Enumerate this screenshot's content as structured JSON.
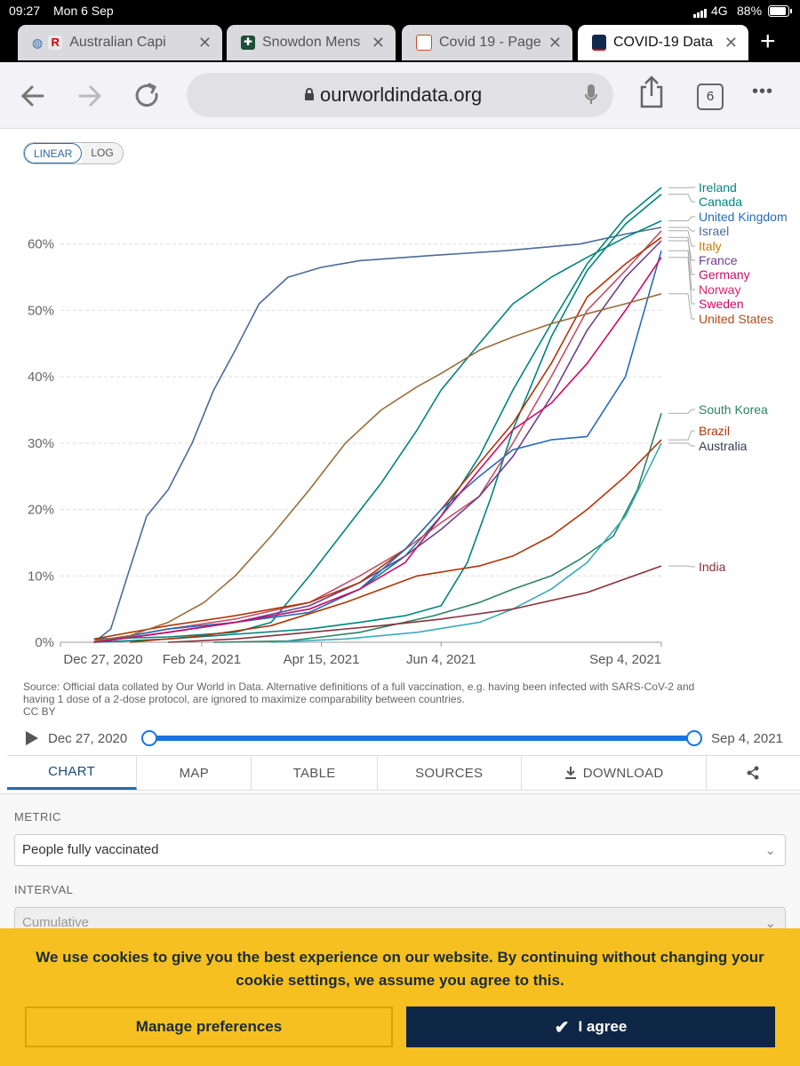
{
  "status": {
    "time": "09:27",
    "date": "Mon 6 Sep",
    "network": "4G",
    "battery": "88%"
  },
  "tabs": [
    {
      "label": "Australian Capi",
      "close": "✕",
      "color": "#3a6fb0"
    },
    {
      "label": "Snowdon Mens",
      "close": "✕",
      "color": "#1e4d3a"
    },
    {
      "label": "Covid 19 - Page",
      "close": "✕",
      "color": "#cc4b2a"
    },
    {
      "label": "COVID-19 Data",
      "close": "✕",
      "color": "#13294b"
    }
  ],
  "new_tab": "+",
  "toolbar": {
    "url": "ourworldindata.org",
    "tab_count": "6",
    "more": "•••"
  },
  "chart": {
    "scale_linear": "LINEAR",
    "scale_log": "LOG",
    "source_text": "Source: Official data collated by Our World in Data. Alternative definitions of a full vaccination, e.g. having been infected with SARS-CoV-2 and",
    "source_text_2": "having 1 dose of a 2-dose protocol, are ignored to maximize comparability between countries.",
    "license": "CC BY"
  },
  "timeline": {
    "start": "Dec 27, 2020",
    "end": "Sep 4, 2021"
  },
  "nav_tabs": [
    {
      "label": "CHART"
    },
    {
      "label": "MAP"
    },
    {
      "label": "TABLE"
    },
    {
      "label": "SOURCES"
    },
    {
      "label": "DOWNLOAD"
    },
    {
      "label": ""
    }
  ],
  "controls": {
    "metric_label": "METRIC",
    "metric_value": "People fully vaccinated",
    "interval_label": "INTERVAL",
    "interval_value": "Cumulative"
  },
  "cookie": {
    "message": "We use cookies to give you the best experience on our website. By continuing without changing your cookie settings, we assume you agree to this.",
    "manage": "Manage preferences",
    "agree": "I agree"
  },
  "chart_data": {
    "type": "line",
    "x_ticks": [
      "Dec 27, 2020",
      "Feb 24, 2021",
      "Apr 15, 2021",
      "Jun 4, 2021",
      "Sep 4, 2021"
    ],
    "y_ticks": [
      "0%",
      "10%",
      "20%",
      "30%",
      "40%",
      "50%",
      "60%"
    ],
    "ylim": [
      0,
      70
    ],
    "grid": true,
    "legend": "right",
    "series": [
      {
        "name": "Israel",
        "color": "#4c6a9c",
        "x": [
          "2021-01-10",
          "2021-01-17",
          "2021-01-24",
          "2021-02-01",
          "2021-02-10",
          "2021-02-20",
          "2021-03-01",
          "2021-03-10",
          "2021-03-20",
          "2021-04-01",
          "2021-04-15",
          "2021-05-01",
          "2021-06-01",
          "2021-07-01",
          "2021-08-01",
          "2021-08-20",
          "2021-09-04"
        ],
        "y": [
          0,
          2,
          10,
          19,
          23,
          30,
          38,
          44,
          51,
          55,
          56.5,
          57.5,
          58.3,
          59,
          60,
          61.5,
          62.5
        ]
      },
      {
        "name": "Ireland",
        "color": "#00847e",
        "x": [
          "2021-01-10",
          "2021-02-10",
          "2021-03-10",
          "2021-04-10",
          "2021-05-01",
          "2021-05-20",
          "2021-06-04",
          "2021-06-20",
          "2021-07-04",
          "2021-07-20",
          "2021-08-04",
          "2021-08-20",
          "2021-09-04"
        ],
        "y": [
          0,
          1.5,
          3,
          5,
          8,
          13,
          19,
          28,
          38,
          48,
          57,
          64,
          68.5
        ]
      },
      {
        "name": "Canada",
        "color": "#00847e",
        "x": [
          "2021-01-10",
          "2021-02-10",
          "2021-03-10",
          "2021-04-10",
          "2021-05-01",
          "2021-05-20",
          "2021-06-04",
          "2021-06-15",
          "2021-06-25",
          "2021-07-04",
          "2021-07-20",
          "2021-08-04",
          "2021-08-20",
          "2021-09-04"
        ],
        "y": [
          0,
          0.5,
          1.2,
          2,
          3,
          4,
          5.5,
          12,
          22,
          32,
          46,
          56,
          63,
          67.5
        ]
      },
      {
        "name": "United Kingdom",
        "color": "#00847e",
        "x": [
          "2021-01-10",
          "2021-02-10",
          "2021-03-10",
          "2021-03-25",
          "2021-04-10",
          "2021-04-25",
          "2021-05-10",
          "2021-05-25",
          "2021-06-04",
          "2021-06-20",
          "2021-07-04",
          "2021-07-20",
          "2021-08-04",
          "2021-08-20",
          "2021-09-04"
        ],
        "y": [
          0.5,
          0.8,
          1.5,
          3,
          10,
          17,
          24,
          32,
          38,
          45,
          51,
          55,
          58,
          61,
          63.5
        ]
      },
      {
        "name": "Italy",
        "color": "#c15065",
        "x": [
          "2021-01-10",
          "2021-02-10",
          "2021-03-10",
          "2021-04-10",
          "2021-05-01",
          "2021-05-20",
          "2021-06-04",
          "2021-06-20",
          "2021-07-04",
          "2021-07-20",
          "2021-08-04",
          "2021-08-20",
          "2021-09-04"
        ],
        "y": [
          0,
          2,
          3.5,
          6,
          10,
          14,
          18,
          22,
          30,
          40,
          50,
          56,
          62
        ]
      },
      {
        "name": "France",
        "color": "#6d3e91",
        "x": [
          "2021-01-10",
          "2021-02-10",
          "2021-03-10",
          "2021-04-10",
          "2021-05-01",
          "2021-05-20",
          "2021-06-04",
          "2021-06-20",
          "2021-07-04",
          "2021-07-20",
          "2021-08-04",
          "2021-08-20",
          "2021-09-04"
        ],
        "y": [
          0,
          1.5,
          3,
          5.5,
          9,
          13,
          17,
          22,
          28,
          37,
          47,
          55,
          60.5
        ]
      },
      {
        "name": "Germany",
        "color": "#b13507",
        "x": [
          "2021-01-10",
          "2021-02-10",
          "2021-03-10",
          "2021-04-10",
          "2021-05-01",
          "2021-05-20",
          "2021-06-04",
          "2021-06-20",
          "2021-07-04",
          "2021-07-20",
          "2021-08-04",
          "2021-08-20",
          "2021-09-04"
        ],
        "y": [
          0.5,
          2.5,
          4,
          6,
          9,
          14,
          20,
          27,
          33,
          42,
          52,
          57,
          61
        ]
      },
      {
        "name": "Norway",
        "color": "#286bbb",
        "x": [
          "2021-01-10",
          "2021-02-10",
          "2021-03-10",
          "2021-04-10",
          "2021-05-01",
          "2021-05-20",
          "2021-06-04",
          "2021-06-20",
          "2021-07-04",
          "2021-07-20",
          "2021-08-04",
          "2021-08-20",
          "2021-09-04"
        ],
        "y": [
          0,
          2,
          3,
          4.5,
          8,
          14,
          20,
          25,
          29,
          30.5,
          31,
          40,
          59
        ]
      },
      {
        "name": "Sweden",
        "color": "#cf0a66",
        "x": [
          "2021-01-10",
          "2021-02-10",
          "2021-03-10",
          "2021-04-10",
          "2021-05-01",
          "2021-05-20",
          "2021-06-04",
          "2021-06-20",
          "2021-07-04",
          "2021-07-20",
          "2021-08-04",
          "2021-08-20",
          "2021-09-04"
        ],
        "y": [
          0,
          1.5,
          3,
          5,
          8,
          12,
          19,
          26,
          32,
          36,
          42,
          50,
          58
        ]
      },
      {
        "name": "United States",
        "color": "#996d39",
        "x": [
          "2021-01-10",
          "2021-01-25",
          "2021-02-10",
          "2021-02-25",
          "2021-03-10",
          "2021-03-25",
          "2021-04-10",
          "2021-04-25",
          "2021-05-10",
          "2021-05-25",
          "2021-06-04",
          "2021-06-20",
          "2021-07-04",
          "2021-07-20",
          "2021-08-04",
          "2021-08-20",
          "2021-09-04"
        ],
        "y": [
          0.2,
          1,
          3,
          6,
          10,
          16,
          23,
          30,
          35,
          38.5,
          40.5,
          44,
          46,
          48,
          49.5,
          51,
          52.5
        ]
      },
      {
        "name": "South Korea",
        "color": "#2c8465",
        "x": [
          "2021-03-01",
          "2021-04-01",
          "2021-05-01",
          "2021-06-01",
          "2021-06-20",
          "2021-07-04",
          "2021-07-20",
          "2021-08-01",
          "2021-08-15",
          "2021-08-25",
          "2021-09-04"
        ],
        "y": [
          0,
          0.2,
          1.5,
          4,
          6,
          8,
          10,
          12.5,
          16,
          23,
          34.5
        ]
      },
      {
        "name": "Brazil",
        "color": "#b13507",
        "x": [
          "2021-01-25",
          "2021-02-25",
          "2021-03-25",
          "2021-04-25",
          "2021-05-25",
          "2021-06-20",
          "2021-07-04",
          "2021-07-20",
          "2021-08-04",
          "2021-08-20",
          "2021-09-04"
        ],
        "y": [
          0,
          1,
          2.5,
          6,
          10,
          11.5,
          13,
          16,
          20,
          25,
          30.5
        ]
      },
      {
        "name": "Australia",
        "color": "#38aaba",
        "x": [
          "2021-03-25",
          "2021-04-25",
          "2021-05-25",
          "2021-06-20",
          "2021-07-04",
          "2021-07-20",
          "2021-08-04",
          "2021-08-20",
          "2021-09-04"
        ],
        "y": [
          0,
          0.5,
          1.5,
          3,
          5,
          8,
          12,
          19,
          30
        ]
      },
      {
        "name": "India",
        "color": "#883039",
        "x": [
          "2021-02-10",
          "2021-03-10",
          "2021-04-10",
          "2021-05-10",
          "2021-06-04",
          "2021-07-04",
          "2021-08-04",
          "2021-09-04"
        ],
        "y": [
          0,
          0.5,
          1.5,
          2.5,
          3.5,
          5,
          7.5,
          11.5
        ]
      }
    ]
  }
}
